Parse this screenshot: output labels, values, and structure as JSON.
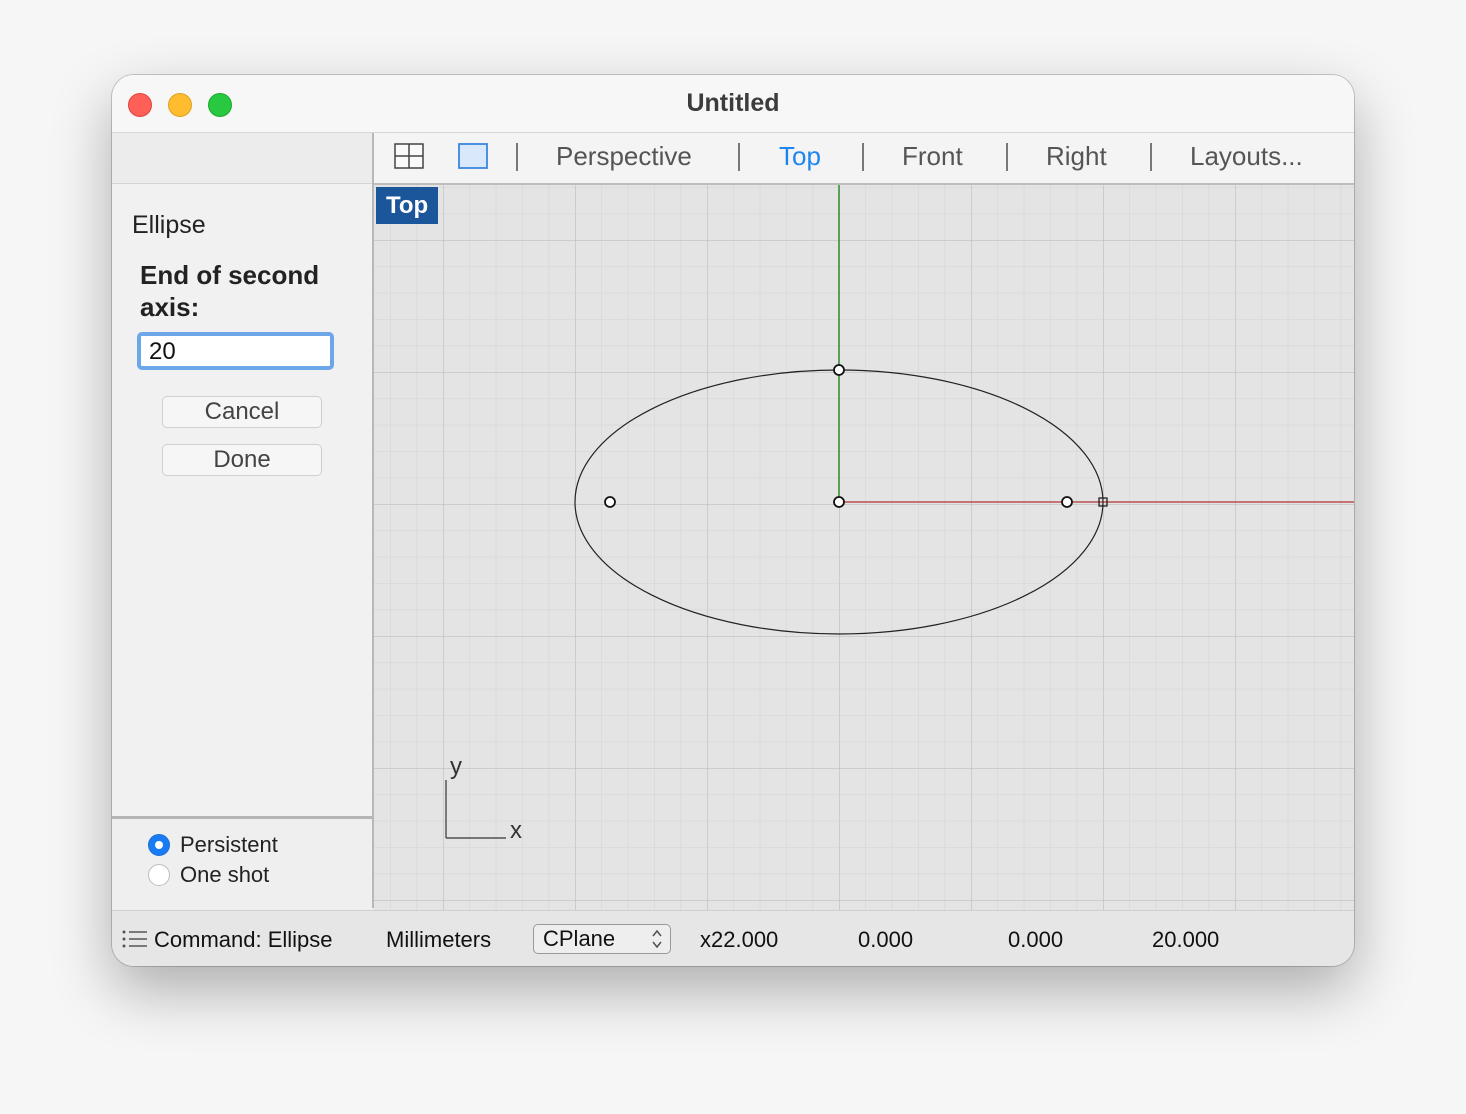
{
  "window": {
    "title": "Untitled"
  },
  "command_panel": {
    "command_name": "Ellipse",
    "prompt": "End of second axis:",
    "input_value": "20",
    "cancel_label": "Cancel",
    "done_label": "Done",
    "options": [
      {
        "label": "Persistent",
        "selected": true
      },
      {
        "label": "One shot",
        "selected": false
      }
    ]
  },
  "viewport_tabs": {
    "icons": [
      "four-viewports-icon",
      "single-viewport-icon"
    ],
    "tabs": [
      "Perspective",
      "Top",
      "Front",
      "Right",
      "Layouts..."
    ],
    "active_tab": "Top"
  },
  "viewport": {
    "label": "Top",
    "axis_x_label": "x",
    "axis_y_label": "y",
    "colors": {
      "background": "#e4e4e4",
      "x_axis": "#b03030",
      "y_axis": "#2f8a2f",
      "label_bg": "#1a5699"
    }
  },
  "statusbar": {
    "command_text": "Command: Ellipse",
    "units": "Millimeters",
    "cplane": "CPlane",
    "x_coord": "x22.000",
    "y_coord": "0.000",
    "z_coord": "0.000",
    "distance": "20.000"
  }
}
